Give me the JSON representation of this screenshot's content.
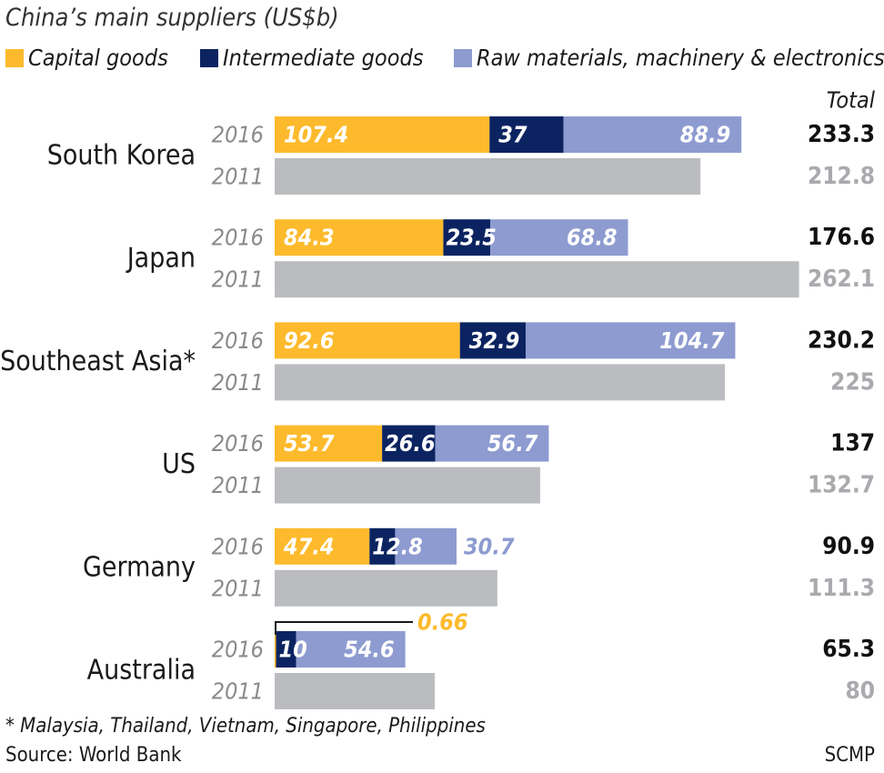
{
  "chart_data": {
    "type": "bar",
    "title": "China’s main suppliers (US$b)",
    "total_header": "Total",
    "footnote": "* Malaysia, Thailand, Vietnam, Singapore, Philippines",
    "source": "Source: World Bank",
    "credit": "SCMP",
    "series": [
      {
        "name": "Capital goods",
        "color": "#FDBA2C"
      },
      {
        "name": "Intermediate goods",
        "color": "#0B2461"
      },
      {
        "name": "Raw materials, machinery & electronics",
        "color": "#8D9BD0"
      }
    ],
    "total_2011_color": "#BBBCBF",
    "categories": [
      {
        "name": "South Korea",
        "year_a": "2016",
        "year_b": "2011",
        "values_2016": [
          107.4,
          37,
          88.9
        ],
        "labels_2016": [
          "107.4",
          "37",
          "88.9"
        ],
        "total_2016": "233.3",
        "total_2011_value": 212.8,
        "total_2011": "212.8"
      },
      {
        "name": "Japan",
        "year_a": "2016",
        "year_b": "2011",
        "values_2016": [
          84.3,
          23.5,
          68.8
        ],
        "labels_2016": [
          "84.3",
          "23.5",
          "68.8"
        ],
        "total_2016": "176.6",
        "total_2011_value": 262.1,
        "total_2011": "262.1"
      },
      {
        "name": "Southeast Asia*",
        "year_a": "2016",
        "year_b": "2011",
        "values_2016": [
          92.6,
          32.9,
          104.7
        ],
        "labels_2016": [
          "92.6",
          "32.9",
          "104.7"
        ],
        "total_2016": "230.2",
        "total_2011_value": 225,
        "total_2011": "225"
      },
      {
        "name": "US",
        "year_a": "2016",
        "year_b": "2011",
        "values_2016": [
          53.7,
          26.6,
          56.7
        ],
        "labels_2016": [
          "53.7",
          "26.6",
          "56.7"
        ],
        "total_2016": "137",
        "total_2011_value": 132.7,
        "total_2011": "132.7"
      },
      {
        "name": "Germany",
        "year_a": "2016",
        "year_b": "2011",
        "values_2016": [
          47.4,
          12.8,
          30.7
        ],
        "labels_2016": [
          "47.4",
          "12.8",
          "30.7"
        ],
        "total_2016": "90.9",
        "total_2011_value": 111.3,
        "total_2011": "111.3"
      },
      {
        "name": "Australia",
        "year_a": "2016",
        "year_b": "2011",
        "values_2016": [
          0.66,
          10,
          54.6
        ],
        "labels_2016": [
          "0.66",
          "10",
          "54.6"
        ],
        "total_2016": "65.3",
        "total_2011_value": 80,
        "total_2011": "80"
      }
    ]
  }
}
